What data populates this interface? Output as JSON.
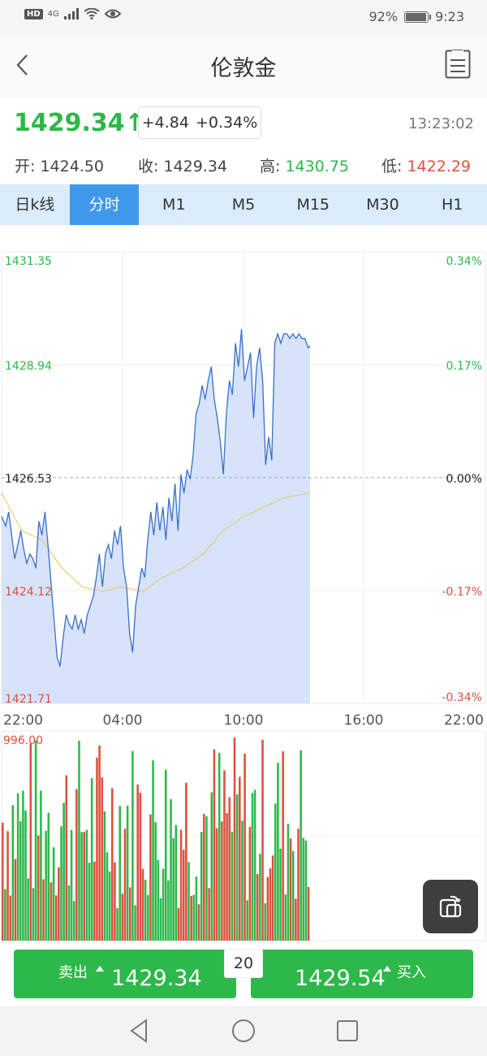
{
  "status_bar": {
    "hd": "HD",
    "network": "4G",
    "battery": "92%",
    "time": "9:23"
  },
  "nav": {
    "title": "伦敦金"
  },
  "quote": {
    "price": "1429.34",
    "arrow": "↑",
    "change_abs": "+4.84",
    "change_pct": "+0.34%",
    "time": "13:23:02"
  },
  "ohlc": {
    "open_label": "开:",
    "open": "1424.50",
    "close_label": "收:",
    "close": "1429.34",
    "high_label": "高:",
    "high": "1430.75",
    "low_label": "低:",
    "low": "1422.29"
  },
  "tabs": [
    {
      "label": "日k线",
      "active": false
    },
    {
      "label": "分时",
      "active": true
    },
    {
      "label": "M1",
      "active": false
    },
    {
      "label": "M5",
      "active": false
    },
    {
      "label": "M15",
      "active": false
    },
    {
      "label": "M30",
      "active": false
    },
    {
      "label": "H1",
      "active": false
    }
  ],
  "colors": {
    "up": "#2db84a",
    "down": "#e04f3e",
    "accent": "#3f98ec",
    "area": "#d6e3fa",
    "line": "#3a6fc9",
    "avg": "#e8c25c"
  },
  "chart_data": {
    "type": "line",
    "y_left_ticks": [
      "1431.35",
      "1428.94",
      "1426.53",
      "1424.12",
      "1421.71"
    ],
    "y_right_ticks": [
      "0.34%",
      "0.17%",
      "0.00%",
      "-0.17%",
      "-0.34%"
    ],
    "x_ticks": [
      "22:00",
      "04:00",
      "10:00",
      "16:00",
      "22:00"
    ],
    "ylim": [
      1421.71,
      1431.35
    ],
    "x_range_hours": [
      0,
      24
    ],
    "reference_price": 1426.53,
    "series": [
      {
        "x": [
          0,
          0.2,
          0.35,
          0.5,
          0.65,
          0.8,
          0.95,
          1.1,
          1.25,
          1.4,
          1.55,
          1.7,
          1.85,
          2.0,
          2.15,
          2.3,
          2.45,
          2.6,
          2.75,
          2.9,
          3.05,
          3.2,
          3.35,
          3.5,
          3.65,
          3.8,
          3.95,
          4.1,
          4.25,
          4.4,
          4.55,
          4.7,
          4.85,
          5.0,
          5.15,
          5.3,
          5.45,
          5.6,
          5.75,
          5.9,
          6.05,
          6.2,
          6.35,
          6.5,
          6.65,
          6.8,
          6.95,
          7.1,
          7.25,
          7.4,
          7.55,
          7.7,
          7.85,
          8.0,
          8.15,
          8.3,
          8.45,
          8.6,
          8.75,
          8.9,
          9.05,
          9.2,
          9.35,
          9.5,
          9.65,
          9.8,
          9.95,
          10.1,
          10.25,
          10.4,
          10.55,
          10.7,
          10.85,
          11.0,
          11.15,
          11.3,
          11.45,
          11.6,
          11.75,
          11.9,
          12.05,
          12.2,
          12.35,
          12.5,
          12.65,
          12.8,
          12.95,
          13.1,
          13.25,
          13.4,
          13.55,
          13.7,
          13.85,
          14.0,
          14.15,
          14.3,
          14.45,
          14.6,
          14.75,
          14.9,
          15.05,
          15.2,
          15.3
        ],
        "y": [
          1425.7,
          1425.5,
          1425.8,
          1425.3,
          1424.8,
          1425.1,
          1425.4,
          1425.0,
          1424.7,
          1424.9,
          1424.8,
          1424.6,
          1425.6,
          1425.3,
          1425.8,
          1425.1,
          1424.3,
          1423.5,
          1422.7,
          1422.5,
          1423.1,
          1423.6,
          1423.4,
          1423.3,
          1423.6,
          1423.3,
          1423.5,
          1423.2,
          1423.6,
          1423.8,
          1424.0,
          1424.4,
          1424.9,
          1424.2,
          1424.9,
          1425.1,
          1424.8,
          1425.4,
          1425.1,
          1425.5,
          1424.6,
          1424.2,
          1423.2,
          1422.8,
          1423.8,
          1424.2,
          1424.6,
          1424.4,
          1425.2,
          1425.8,
          1425.3,
          1426.0,
          1425.4,
          1425.9,
          1425.2,
          1426.1,
          1425.6,
          1426.4,
          1425.4,
          1426.6,
          1426.2,
          1426.7,
          1426.5,
          1427.0,
          1427.9,
          1428.1,
          1428.5,
          1428.2,
          1428.6,
          1428.9,
          1428.2,
          1427.8,
          1427.3,
          1426.6,
          1427.9,
          1428.6,
          1428.3,
          1429.4,
          1428.9,
          1429.7,
          1428.6,
          1428.9,
          1429.2,
          1427.8,
          1428.9,
          1429.3,
          1428.6,
          1426.8,
          1427.4,
          1426.9,
          1429.4,
          1429.6,
          1429.4,
          1429.6,
          1429.6,
          1429.5,
          1429.6,
          1429.5,
          1429.6,
          1429.5,
          1429.5,
          1429.3,
          1429.34
        ]
      },
      {
        "x": [
          0,
          1,
          2,
          3,
          4,
          5,
          6,
          7,
          8,
          9,
          10,
          11,
          12,
          13,
          14,
          15.3
        ],
        "y": [
          1426.2,
          1425.4,
          1425.2,
          1424.6,
          1424.2,
          1424.1,
          1424.2,
          1424.1,
          1424.4,
          1424.6,
          1424.9,
          1425.4,
          1425.7,
          1425.9,
          1426.1,
          1426.2
        ]
      }
    ],
    "volume": {
      "max_label": "996.00",
      "count": 121
    }
  },
  "trade": {
    "sell_label": "卖出",
    "sell_price": "1429.34",
    "lot": "20",
    "buy_price": "1429.54",
    "buy_label": "买入"
  }
}
